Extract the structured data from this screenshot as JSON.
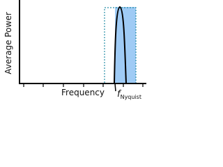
{
  "y_axis_label": "Average Power",
  "x_axis_label": "Frequency",
  "marker_label": {
    "symbol": "f",
    "subscript": "Nyquist"
  }
}
